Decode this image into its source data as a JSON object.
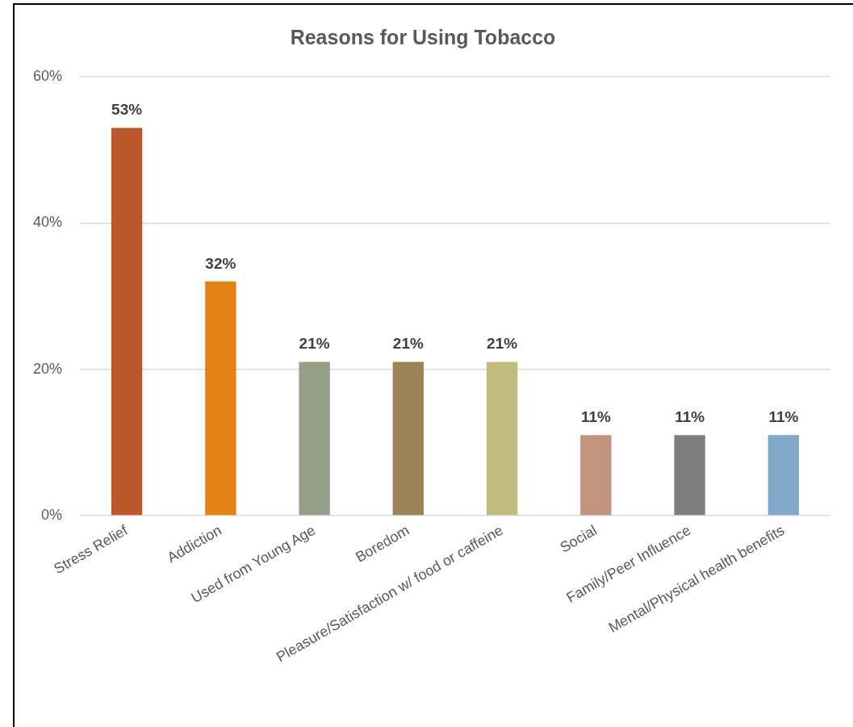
{
  "chart_data": {
    "type": "bar",
    "title": "Reasons for Using Tobacco",
    "categories": [
      "Stress Relief",
      "Addiction",
      "Used from Young Age",
      "Boredom",
      "Pleasure/Satisfaction w/ food or caffeine",
      "Social",
      "Family/Peer Influence",
      "Mental/Physical health benefits"
    ],
    "values": [
      53,
      32,
      21,
      21,
      21,
      11,
      11,
      11
    ],
    "colors": [
      "#be582c",
      "#e38213",
      "#95a086",
      "#9b8357",
      "#c2bb7e",
      "#c2937e",
      "#7f7f7f",
      "#7fa8c9"
    ],
    "value_labels": [
      "53%",
      "32%",
      "21%",
      "21%",
      "21%",
      "11%",
      "11%",
      "11%"
    ],
    "ylim": [
      0,
      60
    ],
    "yticks": [
      {
        "value": 0,
        "label": "0%"
      },
      {
        "value": 20,
        "label": "20%"
      },
      {
        "value": 40,
        "label": "40%"
      },
      {
        "value": 60,
        "label": "60%"
      }
    ],
    "grid": "y",
    "legend": false
  }
}
